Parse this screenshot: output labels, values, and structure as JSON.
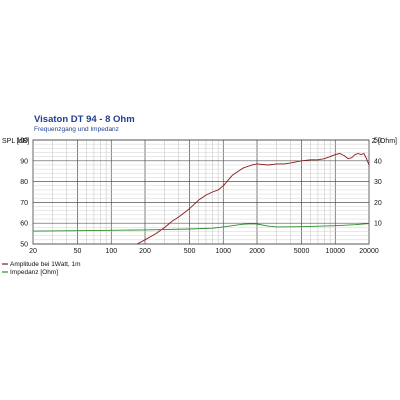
{
  "chart_data": {
    "type": "line",
    "title": "Visaton DT 94 - 8 Ohm",
    "subtitle": "Frequenzgang und Impedanz",
    "ylabel": "SPL [dB]",
    "y2label": "Z [Ohm]",
    "xscale": "log",
    "xlim": [
      20,
      20000
    ],
    "ylim": [
      50,
      100
    ],
    "y2lim": [
      0,
      50
    ],
    "xticks": [
      "20",
      "50",
      "100",
      "200",
      "500",
      "1000",
      "2000",
      "5000",
      "10000",
      "20000"
    ],
    "yticks": [
      "50",
      "60",
      "70",
      "80",
      "90",
      "100"
    ],
    "y2ticks": [
      "10",
      "20",
      "30",
      "40",
      "50"
    ],
    "grid": true,
    "legend_position": "bottom-left",
    "series": [
      {
        "name": "Amplitude bei 1Watt, 1m",
        "color": "#8b1a1a",
        "axis": "left",
        "x": [
          170,
          200,
          250,
          300,
          350,
          400,
          500,
          600,
          700,
          800,
          900,
          1000,
          1200,
          1500,
          1800,
          2000,
          2500,
          3000,
          3500,
          4000,
          5000,
          6000,
          7000,
          8000,
          9000,
          10000,
          11000,
          12000,
          13000,
          14000,
          15000,
          16000,
          17000,
          18000,
          19000,
          20000
        ],
        "y": [
          50,
          52,
          55,
          58,
          61,
          63,
          67,
          71,
          73.5,
          75,
          76,
          78,
          83,
          86.5,
          88,
          88.5,
          88,
          88.5,
          88.5,
          89,
          90,
          90.5,
          90.5,
          91,
          92,
          93,
          93.5,
          92.5,
          91,
          91.5,
          93,
          93.5,
          93,
          93.5,
          91,
          88
        ]
      },
      {
        "name": "Impedanz [Ohm]",
        "color": "#2e8b2e",
        "axis": "right",
        "x": [
          20,
          50,
          100,
          200,
          500,
          800,
          1000,
          1200,
          1500,
          1800,
          2000,
          2500,
          3000,
          5000,
          10000,
          15000,
          20000
        ],
        "y": [
          6.2,
          6.4,
          6.6,
          6.8,
          7.2,
          7.6,
          8.2,
          8.8,
          9.5,
          9.7,
          9.6,
          8.6,
          8.2,
          8.3,
          8.8,
          9.3,
          9.8
        ]
      }
    ]
  }
}
